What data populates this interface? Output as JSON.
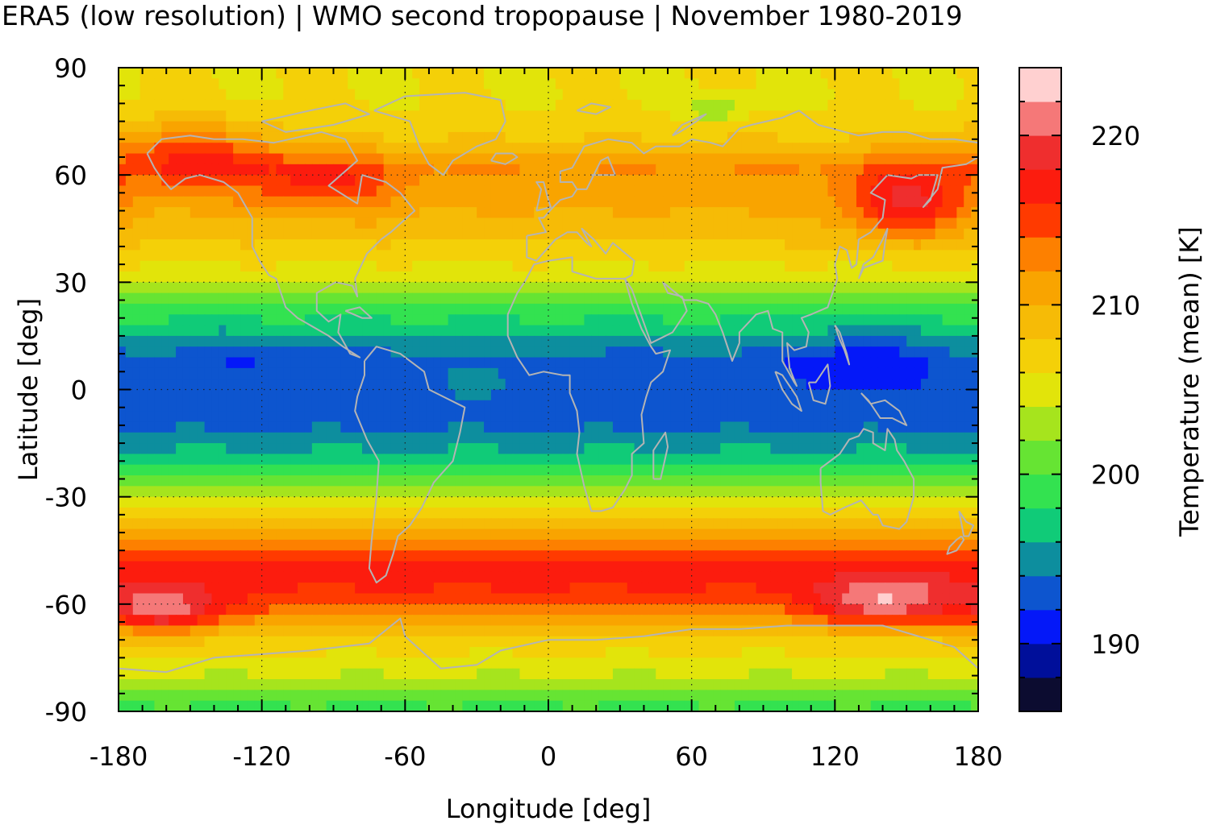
{
  "chart_data": {
    "type": "heatmap",
    "title": "ERA5 (low resolution) | WMO second tropopause | November 1980-2019",
    "xlabel": "Longitude [deg]",
    "ylabel": "Latitude [deg]",
    "colorbar_label": "Temperature (mean) [K]",
    "xlim": [
      -180,
      180
    ],
    "ylim": [
      -90,
      90
    ],
    "x_ticks": [
      -180,
      -120,
      -60,
      0,
      60,
      120,
      180
    ],
    "x_tick_labels": [
      "-180",
      "-120",
      "-60",
      "0",
      "60",
      "120",
      "180"
    ],
    "y_ticks": [
      -90,
      -60,
      -30,
      0,
      30,
      60,
      90
    ],
    "y_tick_labels": [
      "-90",
      "-60",
      "-30",
      "0",
      "30",
      "60",
      "90"
    ],
    "colorbar_ticks": [
      190,
      200,
      210,
      220
    ],
    "colorbar_tick_labels": [
      "190",
      "200",
      "210",
      "220"
    ],
    "colorbar_range": [
      186,
      224
    ],
    "grid": true,
    "coastlines": true,
    "colorbar_levels": [
      {
        "from": 186,
        "to": 188,
        "color": "#0c0c30"
      },
      {
        "from": 188,
        "to": 190,
        "color": "#000f9a"
      },
      {
        "from": 190,
        "to": 192,
        "color": "#0418f8"
      },
      {
        "from": 192,
        "to": 194,
        "color": "#0d55cf"
      },
      {
        "from": 194,
        "to": 196,
        "color": "#0d8e9e"
      },
      {
        "from": 196,
        "to": 198,
        "color": "#10cb78"
      },
      {
        "from": 198,
        "to": 200,
        "color": "#33e250"
      },
      {
        "from": 200,
        "to": 202,
        "color": "#66e433"
      },
      {
        "from": 202,
        "to": 204,
        "color": "#a6e41d"
      },
      {
        "from": 204,
        "to": 206,
        "color": "#e2e40a"
      },
      {
        "from": 206,
        "to": 208,
        "color": "#f4d008"
      },
      {
        "from": 208,
        "to": 210,
        "color": "#f6bb06"
      },
      {
        "from": 210,
        "to": 212,
        "color": "#f9a400"
      },
      {
        "from": 212,
        "to": 214,
        "color": "#fd8000"
      },
      {
        "from": 214,
        "to": 216,
        "color": "#ff3a00"
      },
      {
        "from": 216,
        "to": 218,
        "color": "#fc1c0e"
      },
      {
        "from": 218,
        "to": 220,
        "color": "#ef2e2e"
      },
      {
        "from": 220,
        "to": 222,
        "color": "#f57878"
      },
      {
        "from": 222,
        "to": 224,
        "color": "#ffd0d0"
      }
    ],
    "zonal_mean_profile": {
      "lat": [
        90,
        80,
        70,
        62,
        55,
        45,
        35,
        28,
        22,
        15,
        8,
        0,
        -8,
        -15,
        -22,
        -30,
        -38,
        -44,
        -50,
        -56,
        -62,
        -68,
        -74,
        -80,
        -86,
        -90
      ],
      "value": [
        206,
        206,
        208,
        212,
        211,
        209,
        206,
        203,
        199,
        196,
        193,
        193,
        193,
        195,
        199,
        204,
        209,
        213,
        217,
        216,
        213,
        208,
        206,
        204,
        201,
        199
      ]
    },
    "anomalies": [
      {
        "lon": -150,
        "lat": 66,
        "width": 70,
        "height": 18,
        "delta": 6
      },
      {
        "lon": -95,
        "lat": 58,
        "width": 60,
        "height": 16,
        "delta": 5
      },
      {
        "lon": 150,
        "lat": 52,
        "width": 50,
        "height": 20,
        "delta": 8
      },
      {
        "lon": -160,
        "lat": -62,
        "width": 50,
        "height": 14,
        "delta": 8
      },
      {
        "lon": 140,
        "lat": -60,
        "width": 55,
        "height": 14,
        "delta": 8
      },
      {
        "lon": 70,
        "lat": 78,
        "width": 25,
        "height": 8,
        "delta": -4
      },
      {
        "lon": 130,
        "lat": 8,
        "width": 50,
        "height": 18,
        "delta": -3
      },
      {
        "lon": -120,
        "lat": 10,
        "width": 60,
        "height": 14,
        "delta": -1
      },
      {
        "lon": -25,
        "lat": 2,
        "width": 40,
        "height": 14,
        "delta": 1.5
      }
    ]
  }
}
